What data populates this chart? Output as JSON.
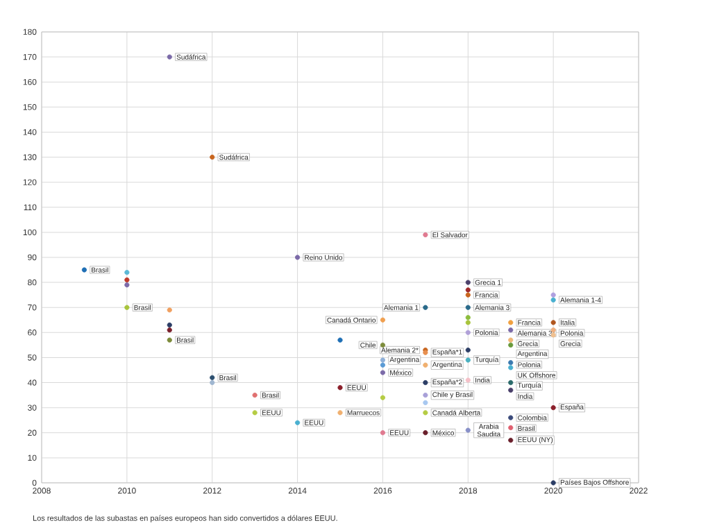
{
  "chart_data": {
    "type": "scatter",
    "grid": true,
    "xlim": [
      2008,
      2022
    ],
    "ylim": [
      0,
      180
    ],
    "xticks": [
      2008,
      2010,
      2012,
      2014,
      2016,
      2018,
      2020,
      2022
    ],
    "yticks": [
      0,
      10,
      20,
      30,
      40,
      50,
      60,
      70,
      80,
      90,
      100,
      110,
      120,
      130,
      140,
      150,
      160,
      170,
      180
    ],
    "x": [
      2009,
      2010,
      2010,
      2010,
      2010,
      2011,
      2011,
      2011,
      2011,
      2011,
      2012,
      2012,
      2012,
      2013,
      2013,
      2014,
      2014,
      2015,
      2015,
      2015,
      2016,
      2016,
      2016,
      2016,
      2016,
      2016,
      2016,
      2017,
      2017,
      2017,
      2017,
      2017,
      2017,
      2017,
      2017,
      2017,
      2017,
      2018,
      2018,
      2018,
      2018,
      2018,
      2018,
      2018,
      2018,
      2018,
      2018,
      2018,
      2019,
      2019,
      2019,
      2019,
      2019,
      2019,
      2019,
      2019,
      2019,
      2019,
      2019,
      2020,
      2020,
      2020,
      2020,
      2020,
      2020,
      2020
    ],
    "values": [
      85,
      84,
      81,
      79,
      70,
      170,
      69,
      63,
      61,
      57,
      130,
      42,
      40,
      35,
      28,
      90,
      24,
      57,
      38,
      28,
      65,
      55,
      49,
      47,
      44,
      34,
      20,
      99,
      70,
      53,
      52,
      47,
      40,
      35,
      32,
      28,
      20,
      80,
      77,
      75,
      70,
      66,
      64,
      60,
      53,
      49,
      41,
      21,
      64,
      61,
      57,
      55,
      48,
      46,
      40,
      37,
      26,
      22,
      17,
      75,
      73,
      64,
      61,
      59,
      30,
      0
    ],
    "colors": [
      "#1f6fb5",
      "#5bb8d6",
      "#c0392b",
      "#7b6aa8",
      "#a8c43c",
      "#7b6aa8",
      "#f0a060",
      "#2c3e66",
      "#7a1f2b",
      "#7d8c3c",
      "#c8651e",
      "#2c4f6f",
      "#9fb6d0",
      "#e07070",
      "#b5cc44",
      "#7b6aa8",
      "#4ab0d0",
      "#1f6fb5",
      "#8b1f2b",
      "#f0b070",
      "#f0a050",
      "#7d8c3c",
      "#8fb0d8",
      "#5b9bd5",
      "#7b6aa8",
      "#b5cc44",
      "#e07a90",
      "#e07a90",
      "#2a6a8a",
      "#c8651e",
      "#e89050",
      "#f0b070",
      "#2c3e66",
      "#a8a0d8",
      "#a8c8f0",
      "#b5cc44",
      "#6a1f2b",
      "#4a3f6a",
      "#a02a2a",
      "#c8651e",
      "#2a6a8a",
      "#8cbc3c",
      "#a8c43c",
      "#b0a0d8",
      "#2c3e66",
      "#4ab0c0",
      "#f5c0c8",
      "#8890c8",
      "#f0a040",
      "#7b6aa8",
      "#f0b878",
      "#6a9a3c",
      "#3a7ab0",
      "#4ab0d0",
      "#2a6a6a",
      "#4a3f6a",
      "#3a4a7a",
      "#e06070",
      "#6a1f2b",
      "#b0a0e0",
      "#4ab0d0",
      "#b0561e",
      "#f0b080",
      "#f0c090",
      "#8b1f2b",
      "#2c3e66"
    ],
    "annotations": [
      {
        "text": "Brasil",
        "x": 2009,
        "y": 85
      },
      {
        "text": "Brasil",
        "x": 2010,
        "y": 70
      },
      {
        "text": "Sudáfrica",
        "x": 2011,
        "y": 170
      },
      {
        "text": "Brasil",
        "x": 2011,
        "y": 57
      },
      {
        "text": "Sudáfrica",
        "x": 2012,
        "y": 130
      },
      {
        "text": "Brasil",
        "x": 2012,
        "y": 42
      },
      {
        "text": "Brasil",
        "x": 2013,
        "y": 35
      },
      {
        "text": "EEUU",
        "x": 2013,
        "y": 28
      },
      {
        "text": "Reino Unido",
        "x": 2014,
        "y": 90
      },
      {
        "text": "EEUU",
        "x": 2014,
        "y": 24
      },
      {
        "text": "EEUU",
        "x": 2015,
        "y": 38
      },
      {
        "text": "Marruecos",
        "x": 2015,
        "y": 28
      },
      {
        "text": "Canadá Ontario",
        "x": 2016,
        "y": 65
      },
      {
        "text": "Chile",
        "x": 2016,
        "y": 55
      },
      {
        "text": "Argentina",
        "x": 2016,
        "y": 49
      },
      {
        "text": "México",
        "x": 2016,
        "y": 44
      },
      {
        "text": "EEUU",
        "x": 2016,
        "y": 20
      },
      {
        "text": "El Salvador",
        "x": 2017,
        "y": 99
      },
      {
        "text": "Alemania 1",
        "x": 2017,
        "y": 70
      },
      {
        "text": "Alemania 2*",
        "x": 2017,
        "y": 53
      },
      {
        "text": "España*1",
        "x": 2017,
        "y": 52
      },
      {
        "text": "Argentina",
        "x": 2017,
        "y": 47
      },
      {
        "text": "España*2",
        "x": 2017,
        "y": 40
      },
      {
        "text": "Chile y Brasil",
        "x": 2017,
        "y": 35
      },
      {
        "text": "Canadá Alberta",
        "x": 2017,
        "y": 28
      },
      {
        "text": "México",
        "x": 2017,
        "y": 20
      },
      {
        "text": "Grecia 1",
        "x": 2018,
        "y": 80
      },
      {
        "text": "Francia",
        "x": 2018,
        "y": 75
      },
      {
        "text": "Alemania 3",
        "x": 2018,
        "y": 70
      },
      {
        "text": "Polonia",
        "x": 2018,
        "y": 60
      },
      {
        "text": "Turquía",
        "x": 2018,
        "y": 49
      },
      {
        "text": "India",
        "x": 2018,
        "y": 41
      },
      {
        "text": "Arabia Saudita",
        "x": 2018,
        "y": 21
      },
      {
        "text": "Francia",
        "x": 2019,
        "y": 64
      },
      {
        "text": "Alemania 3*",
        "x": 2019,
        "y": 61
      },
      {
        "text": "Grecia",
        "x": 2019,
        "y": 57
      },
      {
        "text": "Argentina",
        "x": 2019,
        "y": 55
      },
      {
        "text": "Polonia",
        "x": 2019,
        "y": 48
      },
      {
        "text": "UK Offshore",
        "x": 2019,
        "y": 46
      },
      {
        "text": "Turquía",
        "x": 2019,
        "y": 40
      },
      {
        "text": "India",
        "x": 2019,
        "y": 37
      },
      {
        "text": "Colombia",
        "x": 2019,
        "y": 26
      },
      {
        "text": "Brasil",
        "x": 2019,
        "y": 22
      },
      {
        "text": "EEUU (NY)",
        "x": 2019,
        "y": 17
      },
      {
        "text": "Alemania 1-4",
        "x": 2020,
        "y": 73
      },
      {
        "text": "Italia",
        "x": 2020,
        "y": 64
      },
      {
        "text": "Polonia",
        "x": 2020,
        "y": 61
      },
      {
        "text": "Grecia",
        "x": 2020,
        "y": 59
      },
      {
        "text": "España",
        "x": 2020,
        "y": 30
      },
      {
        "text": "Países Bajos Offshore",
        "x": 2020,
        "y": 0
      },
      "Los resultados de las subastas en países europeos han sido convertidos a dólares EEUU."
    ]
  }
}
